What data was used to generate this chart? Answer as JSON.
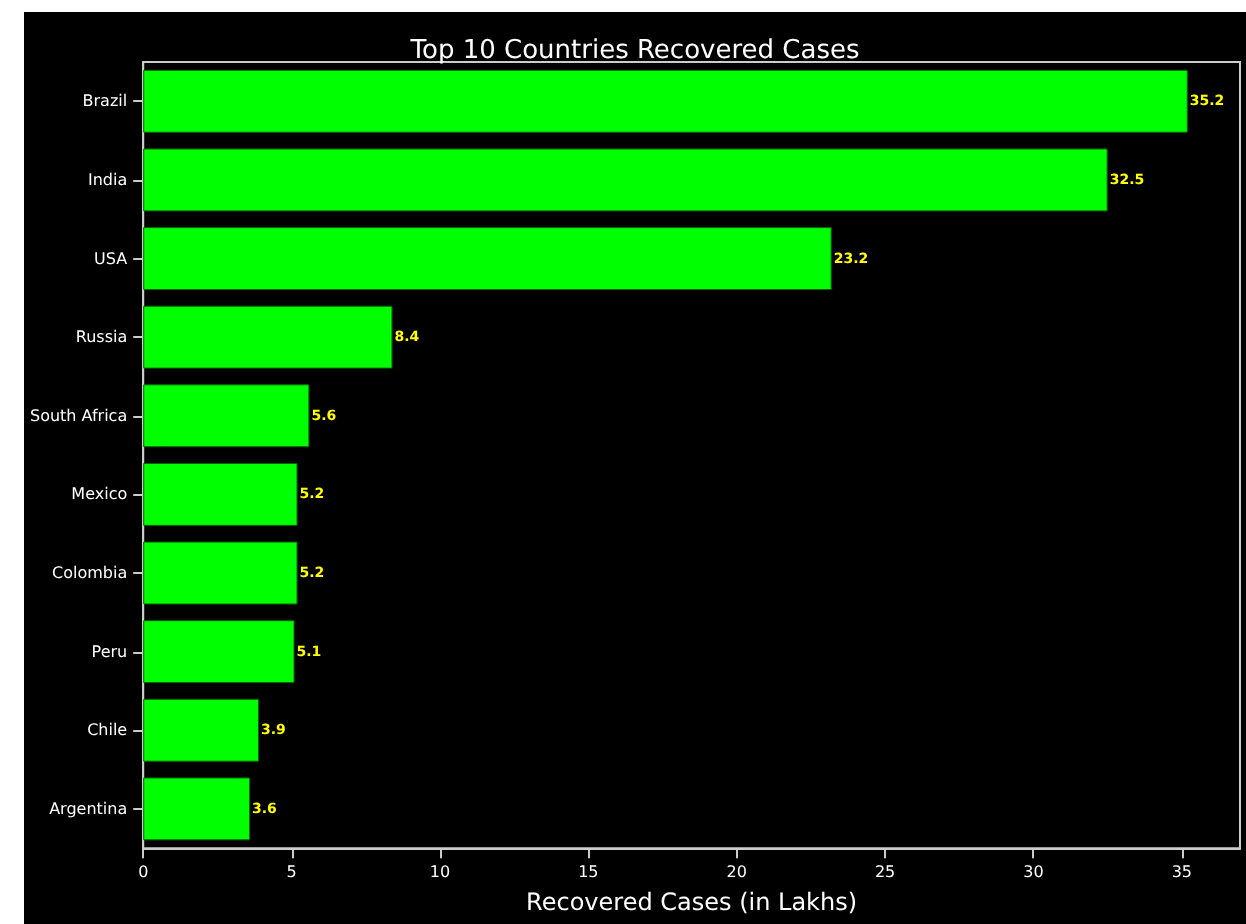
{
  "chart_data": {
    "type": "bar",
    "orientation": "horizontal",
    "title": "Top 10 Countries Recovered Cases",
    "xlabel": "Recovered Cases (in Lakhs)",
    "categories": [
      "Brazil",
      "India",
      "USA",
      "Russia",
      "South Africa",
      "Mexico",
      "Colombia",
      "Peru",
      "Chile",
      "Argentina"
    ],
    "values": [
      35.2,
      32.5,
      23.2,
      8.4,
      5.6,
      5.2,
      5.2,
      5.1,
      3.9,
      3.6
    ],
    "color": "#00ff00",
    "data_labels": true,
    "xlim": [
      0,
      36.96
    ],
    "xticks": [
      0,
      5,
      10,
      15,
      20,
      25,
      30,
      35
    ]
  }
}
